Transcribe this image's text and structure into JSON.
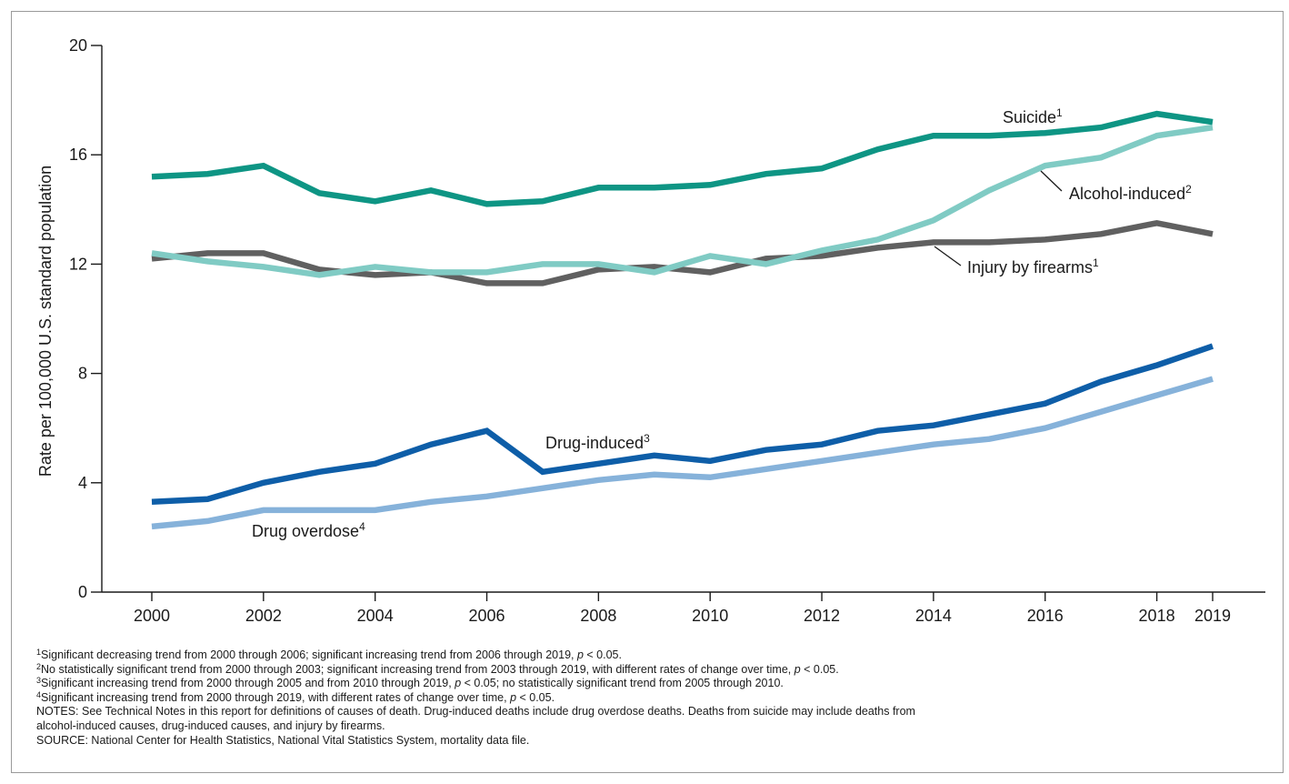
{
  "chart_data": {
    "type": "line",
    "title": "",
    "xlabel": "",
    "ylabel": "Rate per 100,000 U.S. standard population",
    "xlim": [
      2000,
      2019
    ],
    "ylim": [
      0,
      20
    ],
    "x_ticks": [
      2000,
      2002,
      2004,
      2006,
      2008,
      2010,
      2012,
      2014,
      2016,
      2018,
      2019
    ],
    "y_ticks": [
      0,
      4,
      8,
      12,
      16,
      20
    ],
    "grid": false,
    "x": [
      2000,
      2001,
      2002,
      2003,
      2004,
      2005,
      2006,
      2007,
      2008,
      2009,
      2010,
      2011,
      2012,
      2013,
      2014,
      2015,
      2016,
      2017,
      2018,
      2019
    ],
    "series": [
      {
        "name": "Suicide",
        "sup": "1",
        "color": "#0e9584",
        "values": [
          15.2,
          15.3,
          15.6,
          14.6,
          14.3,
          14.7,
          14.2,
          14.3,
          14.8,
          14.8,
          14.9,
          15.3,
          15.5,
          16.2,
          16.7,
          16.7,
          16.8,
          17.0,
          17.5,
          17.2
        ]
      },
      {
        "name": "Alcohol-induced",
        "sup": "2",
        "color": "#80cbc4",
        "values": [
          12.4,
          12.1,
          11.9,
          11.6,
          11.9,
          11.7,
          11.7,
          12.0,
          12.0,
          11.7,
          12.3,
          12.0,
          12.5,
          12.9,
          13.6,
          14.7,
          15.6,
          15.9,
          16.7,
          17.0
        ]
      },
      {
        "name": "Injury by firearms",
        "sup": "1",
        "color": "#606060",
        "values": [
          12.2,
          12.4,
          12.4,
          11.8,
          11.6,
          11.7,
          11.3,
          11.3,
          11.8,
          11.9,
          11.7,
          12.2,
          12.3,
          12.6,
          12.8,
          12.8,
          12.9,
          13.1,
          13.5,
          13.1
        ]
      },
      {
        "name": "Drug-induced",
        "sup": "3",
        "color": "#0e5ea8",
        "values": [
          3.3,
          3.4,
          4.0,
          4.4,
          4.7,
          5.4,
          5.9,
          4.4,
          4.7,
          5.0,
          4.8,
          5.2,
          5.4,
          5.9,
          6.1,
          6.5,
          6.9,
          7.7,
          8.3,
          9.0
        ]
      },
      {
        "name": "Drug overdose",
        "sup": "4",
        "color": "#86b2da",
        "values": [
          2.4,
          2.6,
          3.0,
          3.0,
          3.0,
          3.3,
          3.5,
          3.8,
          4.1,
          4.3,
          4.2,
          4.5,
          4.8,
          5.1,
          5.4,
          5.6,
          6.0,
          6.6,
          7.2,
          7.8
        ]
      }
    ]
  },
  "footnotes": [
    {
      "sup": "1",
      "parts": [
        "Significant decreasing trend from 2000 through 2006; significant increasing trend from 2006 through 2019, ",
        "p",
        " < 0.05."
      ]
    },
    {
      "sup": "2",
      "parts": [
        "No statistically significant trend from 2000 through 2003; significant increasing trend from 2003 through 2019, with different rates of change over time, ",
        "p",
        " < 0.05."
      ]
    },
    {
      "sup": "3",
      "parts": [
        "Significant increasing trend from 2000 through 2005 and from 2010 through 2019, ",
        "p",
        " < 0.05; no statistically significant trend from 2005 through 2010."
      ]
    },
    {
      "sup": "4",
      "parts": [
        "Significant increasing trend from 2000 through 2019, with different rates of change over time, ",
        "p",
        " < 0.05."
      ]
    }
  ],
  "notes": [
    "NOTES: See Technical Notes in this report for definitions of causes of death. Drug-induced deaths include drug overdose deaths. Deaths from suicide may include deaths from",
    "alcohol-induced causes, drug-induced causes, and injury by firearms.",
    "SOURCE: National Center for Health Statistics, National Vital Statistics System, mortality data file."
  ]
}
